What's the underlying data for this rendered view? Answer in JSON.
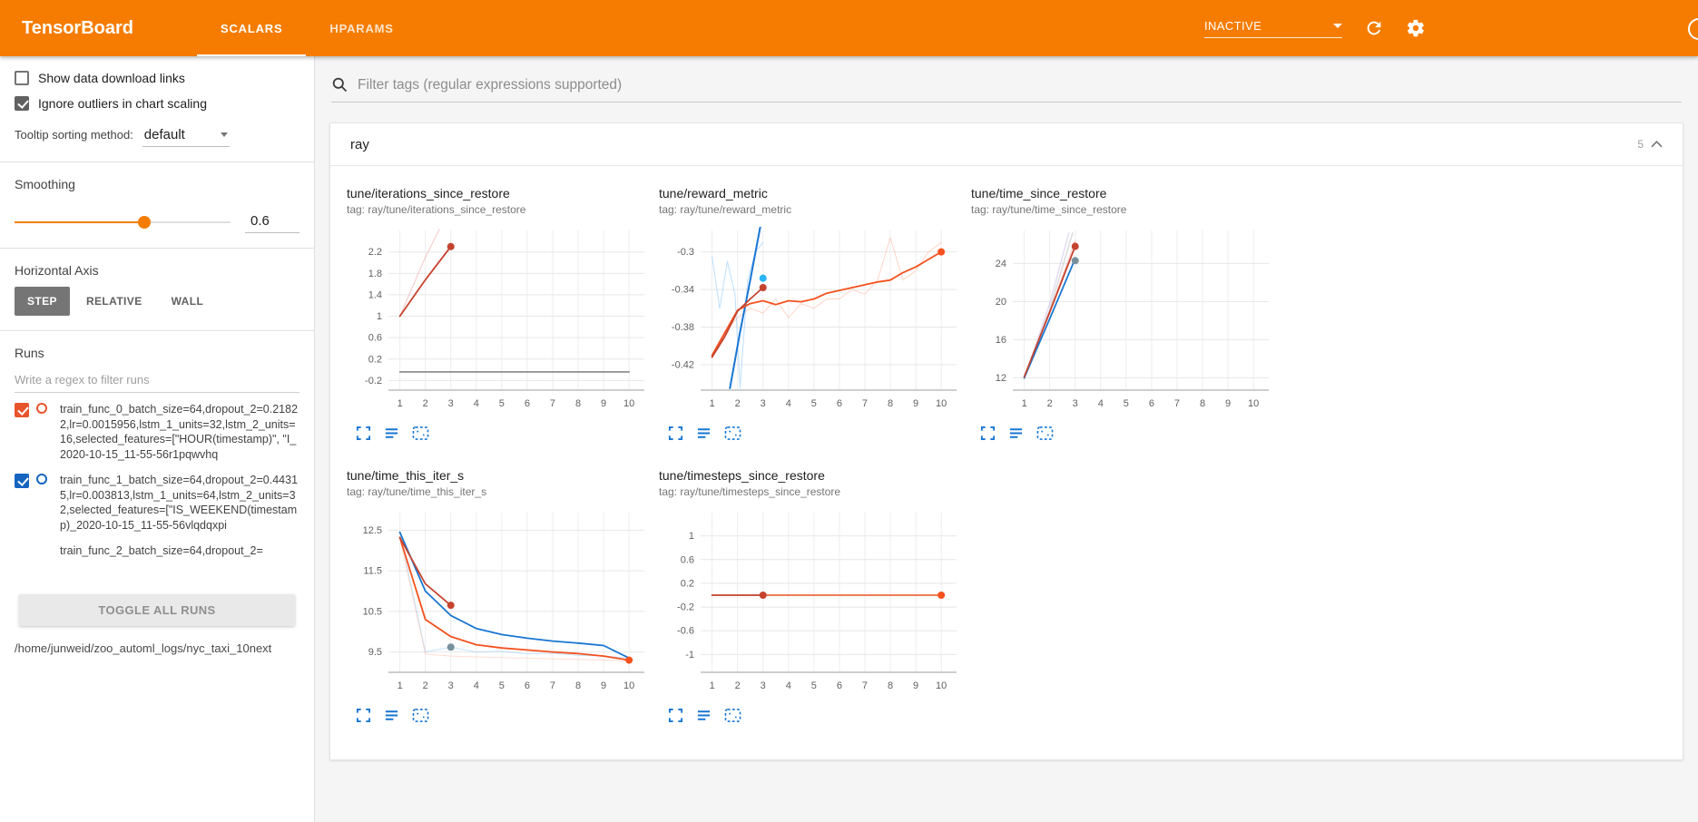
{
  "colors": {
    "header_bg": "#f57c00",
    "accent_orange": "#f57c00",
    "icon_blue": "#1976d2",
    "run0_color": "#e8552d",
    "run1_color": "#1565c0"
  },
  "header": {
    "title": "TensorBoard",
    "tabs": [
      {
        "label": "SCALARS",
        "active": true
      },
      {
        "label": "HPARAMS",
        "active": false
      }
    ],
    "status_dropdown": {
      "value": "INACTIVE"
    },
    "icons": [
      "refresh-icon",
      "settings-gear-icon",
      "help-circle-icon"
    ]
  },
  "sidebar": {
    "show_download": {
      "label": "Show data download links",
      "checked": false
    },
    "ignore_outliers": {
      "label": "Ignore outliers in chart scaling",
      "checked": true
    },
    "tooltip_sorting": {
      "label": "Tooltip sorting method:",
      "value": "default"
    },
    "smoothing": {
      "label": "Smoothing",
      "value": "0.6",
      "fraction": 0.6
    },
    "horizontal_axis": {
      "label": "Horizontal Axis",
      "options": [
        "STEP",
        "RELATIVE",
        "WALL"
      ],
      "selected": "STEP"
    },
    "runs": {
      "label": "Runs",
      "filter_placeholder": "Write a regex to filter runs",
      "items": [
        {
          "name": "train_func_0_batch_size=64,dropout_2=0.21822,lr=0.0015956,lstm_1_units=32,lstm_2_units=16,selected_features=[\"HOUR(timestamp)\", \"I_2020-10-15_11-55-56r1pqwvhq",
          "checked": true,
          "color": "#e8552d",
          "partial": false
        },
        {
          "name": "train_func_1_batch_size=64,dropout_2=0.44315,lr=0.003813,lstm_1_units=64,lstm_2_units=32,selected_features=[\"IS_WEEKEND(timestamp)_2020-10-15_11-55-56vlqdqxpi",
          "checked": true,
          "color": "#1565c0",
          "partial": false
        },
        {
          "name": "train_func_2_batch_size=64,dropout_2=",
          "checked": true,
          "color": "#9e9e9e",
          "partial": true
        }
      ],
      "toggle_all_label": "TOGGLE ALL RUNS",
      "footer_path": "/home/junweid/zoo_automl_logs/nyc_taxi_10next"
    }
  },
  "main": {
    "filter_placeholder": "Filter tags (regular expressions supported)",
    "card": {
      "title": "ray",
      "count": "5"
    },
    "chart_footer_icons": [
      "fullscreen-expand-icon",
      "data-lines-icon",
      "fit-domain-icon"
    ]
  },
  "chart_data": [
    {
      "type": "line",
      "title": "tune/iterations_since_restore",
      "tag": "tag: ray/tune/iterations_since_restore",
      "xlim": [
        0.55,
        10.6
      ],
      "xticks": [
        1,
        2,
        3,
        4,
        5,
        6,
        7,
        8,
        9,
        10
      ],
      "ylim": [
        -0.38,
        2.5
      ],
      "yticks": [
        -0.2,
        0.2,
        0.6,
        1,
        1.4,
        1.8,
        2.2
      ],
      "series": [
        {
          "name": "run0-raw",
          "color": "#ef9a9a",
          "width": 1,
          "opacity": 0.55,
          "points": [
            [
              1,
              1
            ],
            [
              2,
              2.1
            ],
            [
              2.55,
              2.62
            ]
          ]
        },
        {
          "name": "run-flat-gray",
          "color": "#616161",
          "width": 1.4,
          "opacity": 0.9,
          "points": [
            [
              1,
              -0.04
            ],
            [
              10,
              -0.04
            ]
          ]
        },
        {
          "name": "run0-smoothed",
          "color": "#c5432e",
          "width": 1.8,
          "opacity": 1,
          "points": [
            [
              1,
              1
            ],
            [
              2,
              1.68
            ],
            [
              3,
              2.3
            ]
          ]
        }
      ],
      "dots": [
        {
          "x": 3,
          "y": 2.3,
          "color": "#c5432e"
        }
      ]
    },
    {
      "type": "line",
      "title": "tune/reward_metric",
      "tag": "tag: ray/tune/reward_metric",
      "xlim": [
        0.55,
        10.6
      ],
      "xticks": [
        1,
        2,
        3,
        4,
        5,
        6,
        7,
        8,
        9,
        10
      ],
      "ylim": [
        -0.447,
        -0.283
      ],
      "yticks": [
        -0.42,
        -0.38,
        -0.34,
        -0.3
      ],
      "series": [
        {
          "name": "run1-raw",
          "color": "#90caf9",
          "width": 1,
          "opacity": 0.6,
          "points": [
            [
              1,
              -0.305
            ],
            [
              1.3,
              -0.36
            ],
            [
              1.6,
              -0.31
            ],
            [
              1.9,
              -0.345
            ],
            [
              2.1,
              -0.445
            ],
            [
              2.4,
              -0.33
            ],
            [
              2.7,
              -0.3
            ],
            [
              3,
              -0.29
            ]
          ]
        },
        {
          "name": "run0-raw",
          "color": "#ffab91",
          "width": 1,
          "opacity": 0.5,
          "points": [
            [
              1,
              -0.41
            ],
            [
              1.5,
              -0.385
            ],
            [
              2,
              -0.37
            ],
            [
              2.5,
              -0.36
            ],
            [
              3,
              -0.365
            ],
            [
              3.5,
              -0.35
            ],
            [
              4,
              -0.37
            ],
            [
              4.5,
              -0.355
            ],
            [
              5,
              -0.36
            ],
            [
              5.5,
              -0.35
            ],
            [
              6,
              -0.35
            ],
            [
              6.5,
              -0.34
            ],
            [
              7,
              -0.345
            ],
            [
              7.5,
              -0.33
            ],
            [
              8,
              -0.285
            ],
            [
              8.5,
              -0.33
            ],
            [
              9,
              -0.32
            ],
            [
              9.5,
              -0.3
            ],
            [
              10,
              -0.29
            ]
          ]
        },
        {
          "name": "run1-smoothed",
          "color": "#1976d2",
          "width": 2,
          "opacity": 1,
          "points": [
            [
              1.7,
              -0.445
            ],
            [
              2.1,
              -0.385
            ],
            [
              2.5,
              -0.33
            ],
            [
              3,
              -0.258
            ]
          ]
        },
        {
          "name": "run0-smoothed",
          "color": "#f4511e",
          "width": 1.8,
          "opacity": 1,
          "points": [
            [
              1,
              -0.41
            ],
            [
              2,
              -0.362
            ],
            [
              2.5,
              -0.355
            ],
            [
              3,
              -0.352
            ],
            [
              3.5,
              -0.356
            ],
            [
              4,
              -0.352
            ],
            [
              4.5,
              -0.353
            ],
            [
              5,
              -0.35
            ],
            [
              5.5,
              -0.344
            ],
            [
              6,
              -0.341
            ],
            [
              6.5,
              -0.338
            ],
            [
              7,
              -0.335
            ],
            [
              7.5,
              -0.332
            ],
            [
              8,
              -0.33
            ],
            [
              8.5,
              -0.322
            ],
            [
              9,
              -0.316
            ],
            [
              9.5,
              -0.308
            ],
            [
              10,
              -0.3
            ]
          ]
        },
        {
          "name": "run2-smoothed",
          "color": "#c5432e",
          "width": 1.8,
          "opacity": 1,
          "points": [
            [
              1,
              -0.412
            ],
            [
              1.5,
              -0.39
            ],
            [
              2,
              -0.363
            ],
            [
              2.5,
              -0.35
            ],
            [
              3,
              -0.338
            ]
          ]
        }
      ],
      "dots": [
        {
          "x": 3,
          "y": -0.328,
          "color": "#29b6f6"
        },
        {
          "x": 3,
          "y": -0.338,
          "color": "#c5432e"
        },
        {
          "x": 10,
          "y": -0.3,
          "color": "#f4511e"
        }
      ]
    },
    {
      "type": "line",
      "title": "tune/time_since_restore",
      "tag": "tag: ray/tune/time_since_restore",
      "xlim": [
        0.55,
        10.6
      ],
      "xticks": [
        1,
        2,
        3,
        4,
        5,
        6,
        7,
        8,
        9,
        10
      ],
      "ylim": [
        10.7,
        26.9
      ],
      "yticks": [
        12,
        16,
        20,
        24
      ],
      "series": [
        {
          "name": "raw-lavender",
          "color": "#b39ddb",
          "width": 1.5,
          "opacity": 0.35,
          "points": [
            [
              1,
              11.9
            ],
            [
              2,
              19.8
            ],
            [
              2.75,
              27.2
            ]
          ]
        },
        {
          "name": "raw-gray",
          "color": "#bdbdbd",
          "width": 1.5,
          "opacity": 0.55,
          "points": [
            [
              1,
              11.9
            ],
            [
              2,
              19.2
            ],
            [
              2.9,
              27.2
            ]
          ]
        },
        {
          "name": "raw-pink",
          "color": "#ef9a9a",
          "width": 1,
          "opacity": 0.5,
          "points": [
            [
              1,
              12
            ],
            [
              2,
              19
            ],
            [
              3,
              26.4
            ]
          ]
        },
        {
          "name": "run1-smoothed",
          "color": "#1976d2",
          "width": 1.8,
          "opacity": 1,
          "points": [
            [
              1,
              12
            ],
            [
              2,
              18.2
            ],
            [
              3,
              24.5
            ]
          ]
        },
        {
          "name": "run0-smoothed",
          "color": "#c5432e",
          "width": 1.8,
          "opacity": 1,
          "points": [
            [
              1,
              12.1
            ],
            [
              2,
              18.9
            ],
            [
              3,
              25.8
            ]
          ]
        }
      ],
      "dots": [
        {
          "x": 3,
          "y": 25.8,
          "color": "#c5432e"
        },
        {
          "x": 3,
          "y": 24.3,
          "color": "#78909c"
        }
      ]
    },
    {
      "type": "line",
      "title": "tune/time_this_iter_s",
      "tag": "tag: ray/tune/time_this_iter_s",
      "xlim": [
        0.55,
        10.6
      ],
      "xticks": [
        1,
        2,
        3,
        4,
        5,
        6,
        7,
        8,
        9,
        10
      ],
      "ylim": [
        9.0,
        12.8
      ],
      "yticks": [
        9.5,
        10.5,
        11.5,
        12.5
      ],
      "series": [
        {
          "name": "run1-raw",
          "color": "#90caf9",
          "width": 1,
          "opacity": 0.5,
          "points": [
            [
              1,
              12.45
            ],
            [
              2,
              9.5
            ],
            [
              3,
              9.62
            ],
            [
              4,
              9.5
            ],
            [
              5,
              9.52
            ],
            [
              6,
              9.45
            ],
            [
              7,
              9.47
            ],
            [
              8,
              9.42
            ],
            [
              9,
              9.4
            ],
            [
              10,
              9.35
            ]
          ]
        },
        {
          "name": "run0-raw",
          "color": "#ffab91",
          "width": 1,
          "opacity": 0.4,
          "points": [
            [
              1,
              12.3
            ],
            [
              2,
              9.45
            ],
            [
              3,
              9.4
            ],
            [
              4,
              9.38
            ],
            [
              5,
              9.36
            ],
            [
              6,
              9.35
            ],
            [
              7,
              9.33
            ],
            [
              8,
              9.32
            ],
            [
              9,
              9.3
            ],
            [
              10,
              9.28
            ]
          ]
        },
        {
          "name": "run1-smoothed",
          "color": "#1976d2",
          "width": 1.8,
          "opacity": 1,
          "points": [
            [
              1,
              12.45
            ],
            [
              2,
              11.0
            ],
            [
              3,
              10.4
            ],
            [
              4,
              10.08
            ],
            [
              5,
              9.93
            ],
            [
              6,
              9.84
            ],
            [
              7,
              9.77
            ],
            [
              8,
              9.72
            ],
            [
              9,
              9.66
            ],
            [
              10,
              9.35
            ]
          ]
        },
        {
          "name": "run0-smoothed",
          "color": "#f4511e",
          "width": 1.8,
          "opacity": 1,
          "points": [
            [
              1,
              12.32
            ],
            [
              2,
              10.3
            ],
            [
              3,
              9.88
            ],
            [
              4,
              9.68
            ],
            [
              5,
              9.6
            ],
            [
              6,
              9.55
            ],
            [
              7,
              9.5
            ],
            [
              8,
              9.46
            ],
            [
              9,
              9.4
            ],
            [
              10,
              9.3
            ]
          ]
        },
        {
          "name": "run2-smoothed",
          "color": "#c5432e",
          "width": 1.8,
          "opacity": 1,
          "points": [
            [
              1,
              12.32
            ],
            [
              2,
              11.18
            ],
            [
              3,
              10.65
            ]
          ]
        }
      ],
      "dots": [
        {
          "x": 3,
          "y": 10.65,
          "color": "#c5432e"
        },
        {
          "x": 3,
          "y": 9.62,
          "color": "#78909c"
        },
        {
          "x": 10,
          "y": 9.3,
          "color": "#f4511e"
        }
      ]
    },
    {
      "type": "line",
      "title": "tune/timesteps_since_restore",
      "tag": "tag: ray/tune/timesteps_since_restore",
      "xlim": [
        0.55,
        10.6
      ],
      "xticks": [
        1,
        2,
        3,
        4,
        5,
        6,
        7,
        8,
        9,
        10
      ],
      "ylim": [
        -1.3,
        1.3
      ],
      "yticks": [
        -1,
        -0.6,
        -0.2,
        0.2,
        0.6,
        1
      ],
      "series": [
        {
          "name": "run-flat-gray",
          "color": "#9e9e9e",
          "width": 1.2,
          "opacity": 0.8,
          "points": [
            [
              1,
              0
            ],
            [
              10,
              0
            ]
          ]
        },
        {
          "name": "run0-smoothed",
          "color": "#f4511e",
          "width": 1.6,
          "opacity": 0.95,
          "points": [
            [
              3,
              0
            ],
            [
              10,
              0
            ]
          ]
        },
        {
          "name": "run2-smoothed",
          "color": "#c5432e",
          "width": 1.8,
          "opacity": 1,
          "points": [
            [
              1,
              0
            ],
            [
              3,
              0
            ]
          ]
        }
      ],
      "dots": [
        {
          "x": 3,
          "y": 0,
          "color": "#c5432e"
        },
        {
          "x": 10,
          "y": 0,
          "color": "#f4511e"
        }
      ]
    }
  ]
}
